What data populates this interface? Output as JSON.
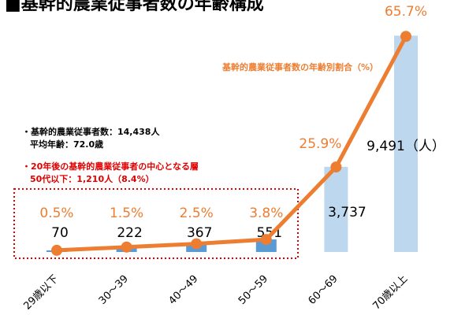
{
  "chart_data": {
    "type": "bar_line",
    "title": "■基幹的農業従事者数の年齢構成",
    "categories": [
      "29歳以下",
      "30～39",
      "40～49",
      "50～59",
      "60～69",
      "70歳以上"
    ],
    "series": [
      {
        "type": "bar",
        "colors": [
          "#5b9bd5",
          "#5b9bd5",
          "#5b9bd5",
          "#5b9bd5",
          "#bdd7ee",
          "#bdd7ee"
        ],
        "values": [
          70,
          222,
          367,
          551,
          3737,
          9491
        ],
        "value_labels": [
          "70",
          "222",
          "367",
          "551",
          "3,737",
          "9,491（人）"
        ]
      },
      {
        "type": "line",
        "name": "基幹的農業従事者数の年齢別割合（%）",
        "color": "#ed7d31",
        "axis": "y2",
        "values": [
          0.5,
          1.5,
          2.5,
          3.8,
          25.9,
          65.7
        ],
        "value_labels": [
          "0.5%",
          "1.5%",
          "2.5%",
          "3.8%",
          "25.9%",
          "65.7%"
        ]
      }
    ],
    "ylim": [
      0,
      9500
    ],
    "y2lim": [
      0,
      66
    ],
    "annotations": [
      "・基幹的農業従事者数：14,438人",
      "平均年齢：72.0歳",
      "・20年後の基幹的農業従事者の中心となる層",
      "50代以下：1,210人（8.4%）"
    ]
  }
}
